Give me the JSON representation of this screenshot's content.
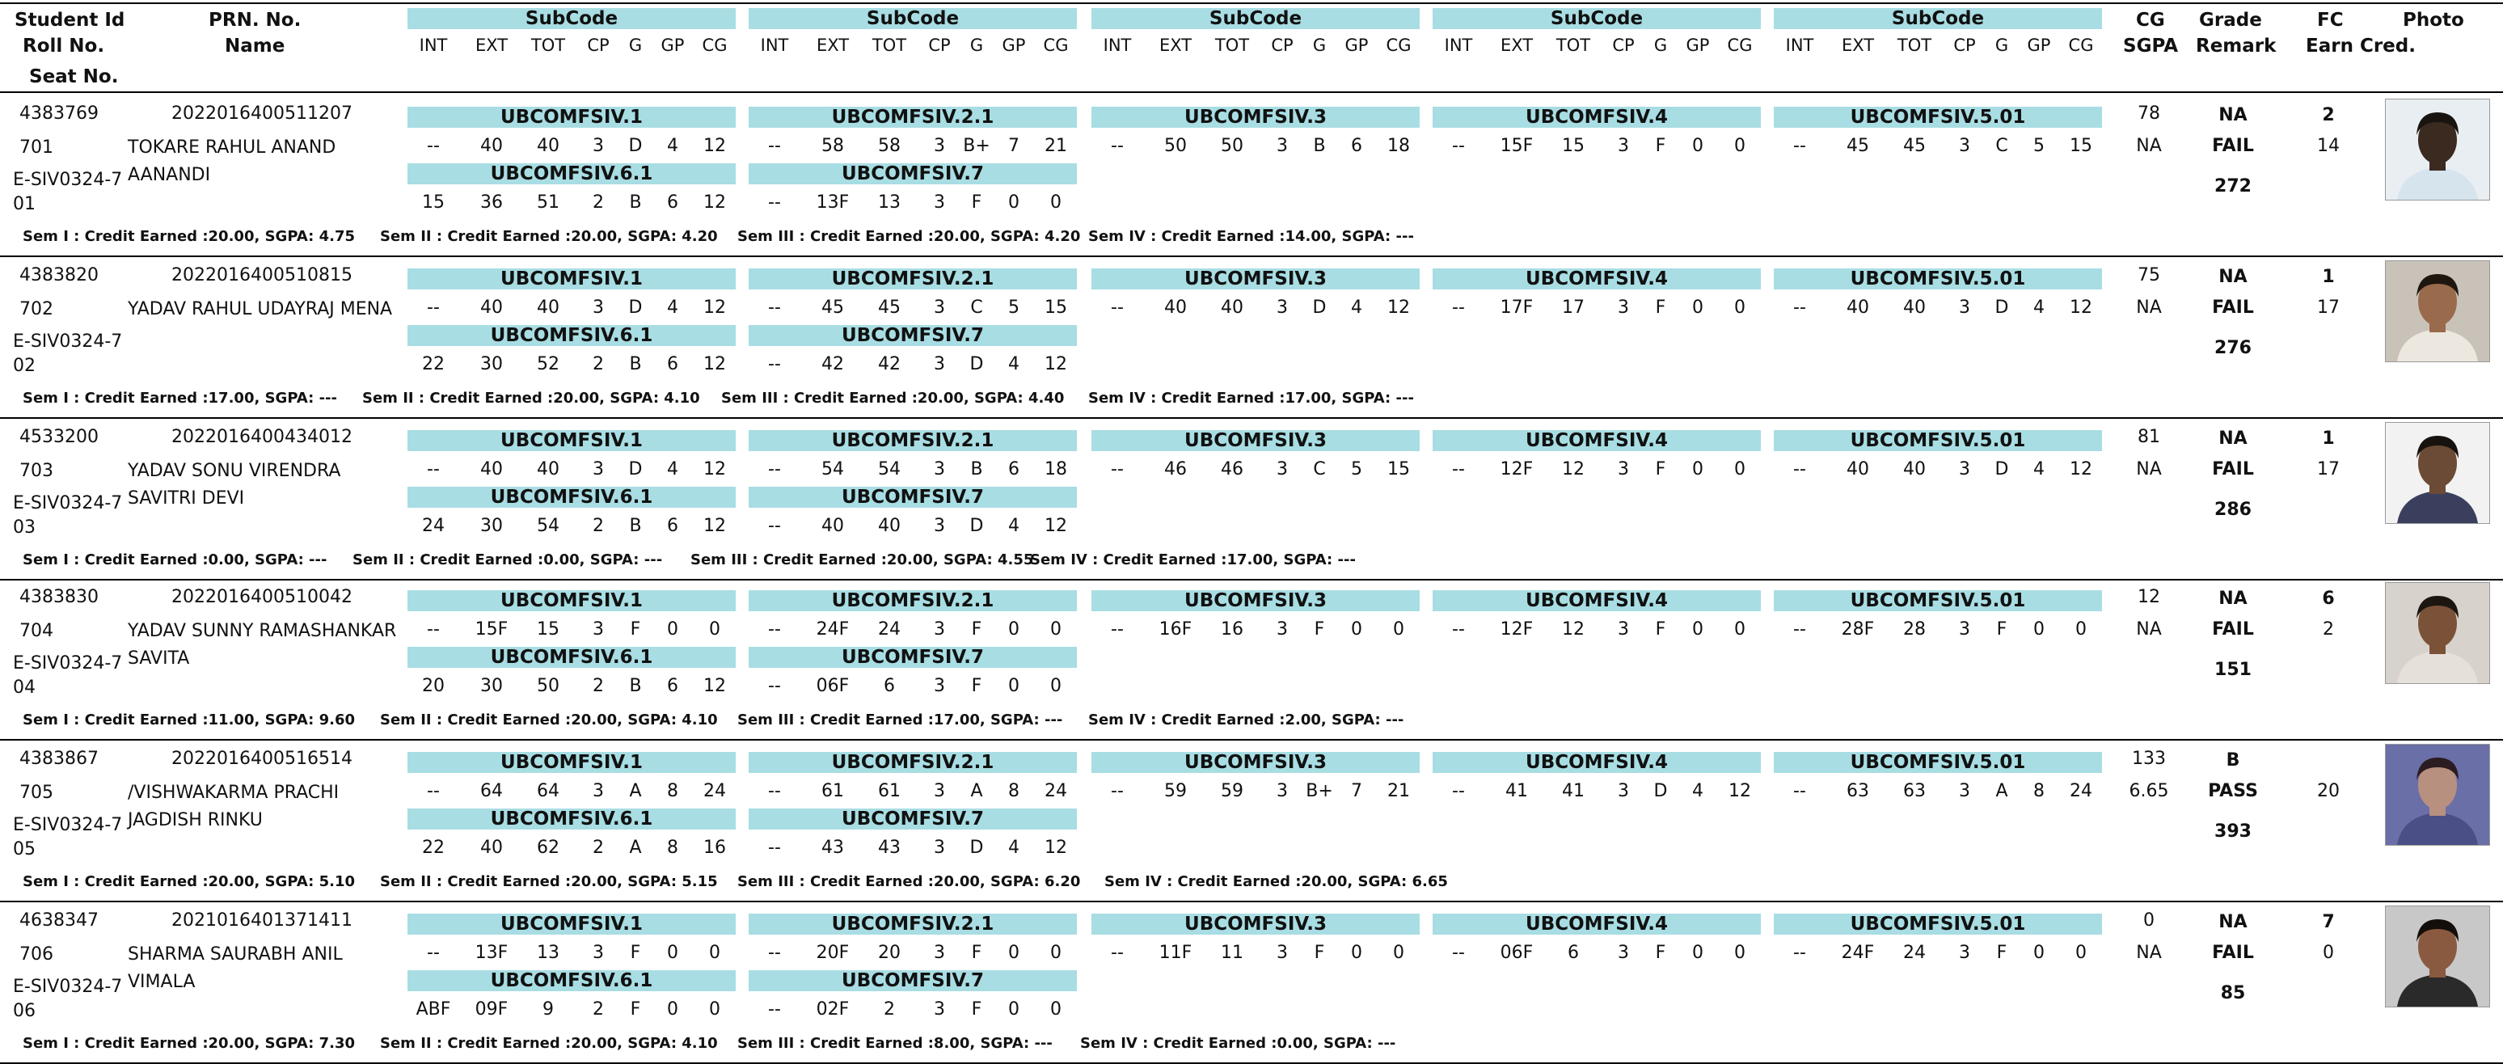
{
  "header": {
    "student_id": "Student Id",
    "roll_no": "Roll No.",
    "seat_no": "Seat No.",
    "prn_no": "PRN. No.",
    "name": "Name",
    "subcode": "SubCode",
    "cols": [
      "INT",
      "EXT",
      "TOT",
      "CP",
      "G",
      "GP",
      "CG"
    ],
    "cg": "CG",
    "sgpa": "SGPA",
    "grade": "Grade",
    "remark": "Remark",
    "fc": "FC",
    "earn_cred": "Earn Cred.",
    "photo": "Photo"
  },
  "students": [
    {
      "id": "4383769",
      "prn": "2022016400511207",
      "roll": "701",
      "name1": "TOKARE RAHUL ANAND",
      "name2": "AANANDI",
      "seat1": "E-SIV0324-7",
      "seat2": "01",
      "row1": [
        {
          "code": "UBCOMFSIV.1",
          "v": [
            "--",
            "40",
            "40",
            "3",
            "D",
            "4",
            "12"
          ]
        },
        {
          "code": "UBCOMFSIV.2.1",
          "v": [
            "--",
            "58",
            "58",
            "3",
            "B+",
            "7",
            "21"
          ]
        },
        {
          "code": "UBCOMFSIV.3",
          "v": [
            "--",
            "50",
            "50",
            "3",
            "B",
            "6",
            "18"
          ]
        },
        {
          "code": "UBCOMFSIV.4",
          "v": [
            "--",
            "15F",
            "15",
            "3",
            "F",
            "0",
            "0"
          ]
        },
        {
          "code": "UBCOMFSIV.5.01",
          "v": [
            "--",
            "45",
            "45",
            "3",
            "C",
            "5",
            "15"
          ]
        }
      ],
      "row2": [
        {
          "code": "UBCOMFSIV.6.1",
          "v": [
            "15",
            "36",
            "51",
            "2",
            "B",
            "6",
            "12"
          ]
        },
        {
          "code": "UBCOMFSIV.7",
          "v": [
            "--",
            "13F",
            "13",
            "3",
            "F",
            "0",
            "0"
          ]
        }
      ],
      "cg": "78",
      "sgpa": "NA",
      "grade": "NA",
      "remark": "FAIL",
      "fc": "2",
      "earn": "14",
      "total": "272",
      "sems": [
        "Sem I : Credit Earned :20.00, SGPA: 4.75",
        "Sem II : Credit Earned :20.00, SGPA: 4.20",
        "Sem III : Credit Earned :20.00, SGPA: 4.20",
        "Sem IV : Credit Earned :14.00, SGPA: ---"
      ],
      "photo_colors": {
        "bg": "#e9eef2",
        "skin": "#3b2a20",
        "shirt": "#d6e4ee",
        "hair": "#1a1410"
      }
    },
    {
      "id": "4383820",
      "prn": "2022016400510815",
      "roll": "702",
      "name1": "YADAV RAHUL UDAYRAJ MENA",
      "name2": "",
      "seat1": "E-SIV0324-7",
      "seat2": "02",
      "row1": [
        {
          "code": "UBCOMFSIV.1",
          "v": [
            "--",
            "40",
            "40",
            "3",
            "D",
            "4",
            "12"
          ]
        },
        {
          "code": "UBCOMFSIV.2.1",
          "v": [
            "--",
            "45",
            "45",
            "3",
            "C",
            "5",
            "15"
          ]
        },
        {
          "code": "UBCOMFSIV.3",
          "v": [
            "--",
            "40",
            "40",
            "3",
            "D",
            "4",
            "12"
          ]
        },
        {
          "code": "UBCOMFSIV.4",
          "v": [
            "--",
            "17F",
            "17",
            "3",
            "F",
            "0",
            "0"
          ]
        },
        {
          "code": "UBCOMFSIV.5.01",
          "v": [
            "--",
            "40",
            "40",
            "3",
            "D",
            "4",
            "12"
          ]
        }
      ],
      "row2": [
        {
          "code": "UBCOMFSIV.6.1",
          "v": [
            "22",
            "30",
            "52",
            "2",
            "B",
            "6",
            "12"
          ]
        },
        {
          "code": "UBCOMFSIV.7",
          "v": [
            "--",
            "42",
            "42",
            "3",
            "D",
            "4",
            "12"
          ]
        }
      ],
      "cg": "75",
      "sgpa": "NA",
      "grade": "NA",
      "remark": "FAIL",
      "fc": "1",
      "earn": "17",
      "total": "276",
      "sems": [
        "Sem I : Credit Earned :17.00, SGPA: ---",
        "Sem II : Credit Earned :20.00, SGPA: 4.10",
        "Sem III : Credit Earned :20.00, SGPA: 4.40",
        "Sem IV : Credit Earned :17.00, SGPA: ---"
      ],
      "photo_colors": {
        "bg": "#c9c2b8",
        "skin": "#9a6a4c",
        "shirt": "#ece8e0",
        "hair": "#201610"
      }
    },
    {
      "id": "4533200",
      "prn": "2022016400434012",
      "roll": "703",
      "name1": "YADAV SONU VIRENDRA",
      "name2": "SAVITRI DEVI",
      "seat1": "E-SIV0324-7",
      "seat2": "03",
      "row1": [
        {
          "code": "UBCOMFSIV.1",
          "v": [
            "--",
            "40",
            "40",
            "3",
            "D",
            "4",
            "12"
          ]
        },
        {
          "code": "UBCOMFSIV.2.1",
          "v": [
            "--",
            "54",
            "54",
            "3",
            "B",
            "6",
            "18"
          ]
        },
        {
          "code": "UBCOMFSIV.3",
          "v": [
            "--",
            "46",
            "46",
            "3",
            "C",
            "5",
            "15"
          ]
        },
        {
          "code": "UBCOMFSIV.4",
          "v": [
            "--",
            "12F",
            "12",
            "3",
            "F",
            "0",
            "0"
          ]
        },
        {
          "code": "UBCOMFSIV.5.01",
          "v": [
            "--",
            "40",
            "40",
            "3",
            "D",
            "4",
            "12"
          ]
        }
      ],
      "row2": [
        {
          "code": "UBCOMFSIV.6.1",
          "v": [
            "24",
            "30",
            "54",
            "2",
            "B",
            "6",
            "12"
          ]
        },
        {
          "code": "UBCOMFSIV.7",
          "v": [
            "--",
            "40",
            "40",
            "3",
            "D",
            "4",
            "12"
          ]
        }
      ],
      "cg": "81",
      "sgpa": "NA",
      "grade": "NA",
      "remark": "FAIL",
      "fc": "1",
      "earn": "17",
      "total": "286",
      "sems": [
        "Sem I : Credit Earned :0.00, SGPA: ---",
        "Sem II : Credit Earned :0.00, SGPA: ---",
        "Sem III : Credit Earned :20.00, SGPA: 4.55",
        "Sem IV : Credit Earned :17.00, SGPA: ---"
      ],
      "photo_colors": {
        "bg": "#f2f2f2",
        "skin": "#6b4a36",
        "shirt": "#3a3f5e",
        "hair": "#17120e"
      }
    },
    {
      "id": "4383830",
      "prn": "2022016400510042",
      "roll": "704",
      "name1": "YADAV SUNNY RAMASHANKAR",
      "name2": "SAVITA",
      "seat1": "E-SIV0324-7",
      "seat2": "04",
      "row1": [
        {
          "code": "UBCOMFSIV.1",
          "v": [
            "--",
            "15F",
            "15",
            "3",
            "F",
            "0",
            "0"
          ]
        },
        {
          "code": "UBCOMFSIV.2.1",
          "v": [
            "--",
            "24F",
            "24",
            "3",
            "F",
            "0",
            "0"
          ]
        },
        {
          "code": "UBCOMFSIV.3",
          "v": [
            "--",
            "16F",
            "16",
            "3",
            "F",
            "0",
            "0"
          ]
        },
        {
          "code": "UBCOMFSIV.4",
          "v": [
            "--",
            "12F",
            "12",
            "3",
            "F",
            "0",
            "0"
          ]
        },
        {
          "code": "UBCOMFSIV.5.01",
          "v": [
            "--",
            "28F",
            "28",
            "3",
            "F",
            "0",
            "0"
          ]
        }
      ],
      "row2": [
        {
          "code": "UBCOMFSIV.6.1",
          "v": [
            "20",
            "30",
            "50",
            "2",
            "B",
            "6",
            "12"
          ]
        },
        {
          "code": "UBCOMFSIV.7",
          "v": [
            "--",
            "06F",
            "6",
            "3",
            "F",
            "0",
            "0"
          ]
        }
      ],
      "cg": "12",
      "sgpa": "NA",
      "grade": "NA",
      "remark": "FAIL",
      "fc": "6",
      "earn": "2",
      "total": "151",
      "sems": [
        "Sem I : Credit Earned :11.00, SGPA: 9.60",
        "Sem II : Credit Earned :20.00, SGPA: 4.10",
        "Sem III : Credit Earned :17.00, SGPA: ---",
        "Sem IV : Credit Earned :2.00, SGPA: ---"
      ],
      "photo_colors": {
        "bg": "#d8d2cc",
        "skin": "#7a5238",
        "shirt": "#e6e0da",
        "hair": "#1c1510"
      }
    },
    {
      "id": "4383867",
      "prn": "2022016400516514",
      "roll": "705",
      "name1": "/VISHWAKARMA PRACHI",
      "name2": "JAGDISH RINKU",
      "seat1": "E-SIV0324-7",
      "seat2": "05",
      "row1": [
        {
          "code": "UBCOMFSIV.1",
          "v": [
            "--",
            "64",
            "64",
            "3",
            "A",
            "8",
            "24"
          ]
        },
        {
          "code": "UBCOMFSIV.2.1",
          "v": [
            "--",
            "61",
            "61",
            "3",
            "A",
            "8",
            "24"
          ]
        },
        {
          "code": "UBCOMFSIV.3",
          "v": [
            "--",
            "59",
            "59",
            "3",
            "B+",
            "7",
            "21"
          ]
        },
        {
          "code": "UBCOMFSIV.4",
          "v": [
            "--",
            "41",
            "41",
            "3",
            "D",
            "4",
            "12"
          ]
        },
        {
          "code": "UBCOMFSIV.5.01",
          "v": [
            "--",
            "63",
            "63",
            "3",
            "A",
            "8",
            "24"
          ]
        }
      ],
      "row2": [
        {
          "code": "UBCOMFSIV.6.1",
          "v": [
            "22",
            "40",
            "62",
            "2",
            "A",
            "8",
            "16"
          ]
        },
        {
          "code": "UBCOMFSIV.7",
          "v": [
            "--",
            "43",
            "43",
            "3",
            "D",
            "4",
            "12"
          ]
        }
      ],
      "cg": "133",
      "sgpa": "6.65",
      "grade": "B",
      "remark": "PASS",
      "fc": "",
      "earn": "20",
      "total": "393",
      "sems": [
        "Sem I : Credit Earned :20.00, SGPA: 5.10",
        "Sem II : Credit Earned :20.00, SGPA: 5.15",
        "Sem III : Credit Earned :20.00, SGPA: 6.20",
        "Sem IV : Credit Earned :20.00, SGPA: 6.65"
      ],
      "photo_colors": {
        "bg": "#6a6fa8",
        "skin": "#b89080",
        "shirt": "#4a4f86",
        "hair": "#2a1c20"
      }
    },
    {
      "id": "4638347",
      "prn": "2021016401371411",
      "roll": "706",
      "name1": "SHARMA SAURABH ANIL",
      "name2": "VIMALA",
      "seat1": "E-SIV0324-7",
      "seat2": "06",
      "row1": [
        {
          "code": "UBCOMFSIV.1",
          "v": [
            "--",
            "13F",
            "13",
            "3",
            "F",
            "0",
            "0"
          ]
        },
        {
          "code": "UBCOMFSIV.2.1",
          "v": [
            "--",
            "20F",
            "20",
            "3",
            "F",
            "0",
            "0"
          ]
        },
        {
          "code": "UBCOMFSIV.3",
          "v": [
            "--",
            "11F",
            "11",
            "3",
            "F",
            "0",
            "0"
          ]
        },
        {
          "code": "UBCOMFSIV.4",
          "v": [
            "--",
            "06F",
            "6",
            "3",
            "F",
            "0",
            "0"
          ]
        },
        {
          "code": "UBCOMFSIV.5.01",
          "v": [
            "--",
            "24F",
            "24",
            "3",
            "F",
            "0",
            "0"
          ]
        }
      ],
      "row2": [
        {
          "code": "UBCOMFSIV.6.1",
          "v": [
            "ABF",
            "09F",
            "9",
            "2",
            "F",
            "0",
            "0"
          ]
        },
        {
          "code": "UBCOMFSIV.7",
          "v": [
            "--",
            "02F",
            "2",
            "3",
            "F",
            "0",
            "0"
          ]
        }
      ],
      "cg": "0",
      "sgpa": "NA",
      "grade": "NA",
      "remark": "FAIL",
      "fc": "7",
      "earn": "0",
      "total": "85",
      "sems": [
        "Sem I : Credit Earned :20.00, SGPA: 7.30",
        "Sem II : Credit Earned :20.00, SGPA: 4.10",
        "Sem III : Credit Earned :8.00, SGPA: ---",
        "Sem IV : Credit Earned :0.00, SGPA: ---"
      ],
      "photo_colors": {
        "bg": "#c8c8c8",
        "skin": "#8a5a40",
        "shirt": "#2a2a2a",
        "hair": "#140e0a"
      }
    }
  ]
}
